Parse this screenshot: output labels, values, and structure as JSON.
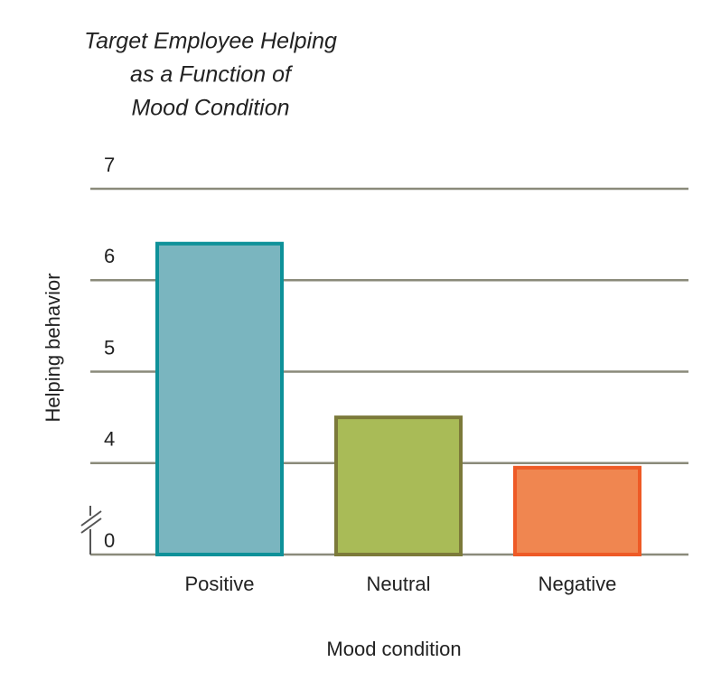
{
  "chart_data": {
    "type": "bar",
    "title": [
      "Target Employee Helping",
      "as a Function of",
      "Mood Condition"
    ],
    "x_label": "Mood condition",
    "y_label": "Helping behavior",
    "categories": [
      "Positive",
      "Neutral",
      "Negative"
    ],
    "values": [
      6.4,
      4.5,
      3.95
    ],
    "colors": [
      "#7ab5bf",
      "#a9bb57",
      "#f08650"
    ],
    "edge_colors": [
      "#0e9199",
      "#7c7a3a",
      "#ee5a26"
    ],
    "ylim": [
      3,
      7
    ],
    "yticks": [
      0,
      4,
      5,
      6,
      7
    ],
    "axis_break": true,
    "grid": true
  }
}
